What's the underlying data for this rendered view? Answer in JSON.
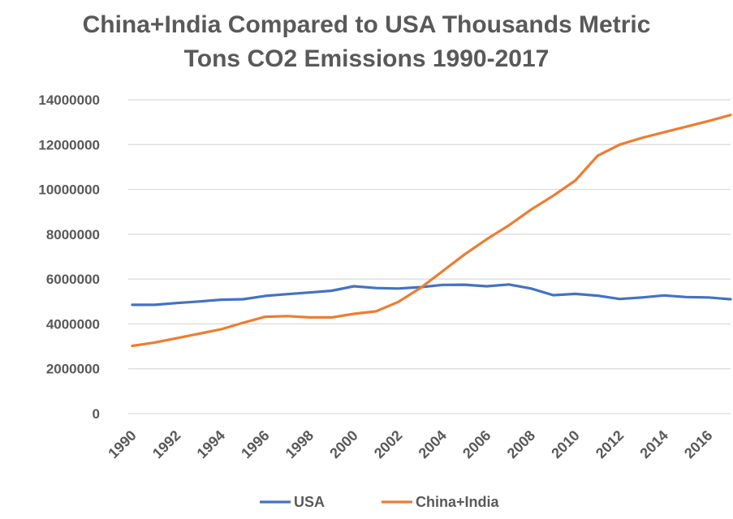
{
  "chart_data": {
    "type": "line",
    "title_line1": "China+India Compared to USA Thousands Metric",
    "title_line2": "Tons CO2 Emissions 1990-2017",
    "xlabel": "",
    "ylabel": "",
    "x": [
      1990,
      1991,
      1992,
      1993,
      1994,
      1995,
      1996,
      1997,
      1998,
      1999,
      2000,
      2001,
      2002,
      2003,
      2004,
      2005,
      2006,
      2007,
      2008,
      2009,
      2010,
      2011,
      2012,
      2013,
      2014,
      2015,
      2016,
      2017
    ],
    "x_tick_labels": [
      "1990",
      "1992",
      "1994",
      "1996",
      "1998",
      "2000",
      "2002",
      "2004",
      "2006",
      "2008",
      "2010",
      "2012",
      "2014",
      "2016"
    ],
    "ylim": [
      0,
      14000000
    ],
    "y_ticks": [
      0,
      2000000,
      4000000,
      6000000,
      8000000,
      10000000,
      12000000,
      14000000
    ],
    "y_tick_labels": [
      "0",
      "2000000",
      "4000000",
      "6000000",
      "8000000",
      "10000000",
      "12000000",
      "14000000"
    ],
    "grid": true,
    "legend_position": "bottom",
    "series": [
      {
        "name": "USA",
        "color": "#4472C4",
        "values": [
          4850000,
          4850000,
          4930000,
          5000000,
          5080000,
          5100000,
          5250000,
          5330000,
          5400000,
          5480000,
          5680000,
          5600000,
          5580000,
          5640000,
          5740000,
          5750000,
          5680000,
          5760000,
          5580000,
          5280000,
          5340000,
          5260000,
          5110000,
          5180000,
          5270000,
          5200000,
          5180000,
          5100000
        ]
      },
      {
        "name": "China+India",
        "color": "#ED7D31",
        "values": [
          3020000,
          3170000,
          3360000,
          3560000,
          3760000,
          4050000,
          4320000,
          4350000,
          4290000,
          4290000,
          4450000,
          4560000,
          4980000,
          5600000,
          6350000,
          7100000,
          7780000,
          8400000,
          9100000,
          9720000,
          10400000,
          11500000,
          12000000,
          12300000,
          12550000,
          12800000,
          13050000,
          13320000
        ]
      }
    ]
  }
}
